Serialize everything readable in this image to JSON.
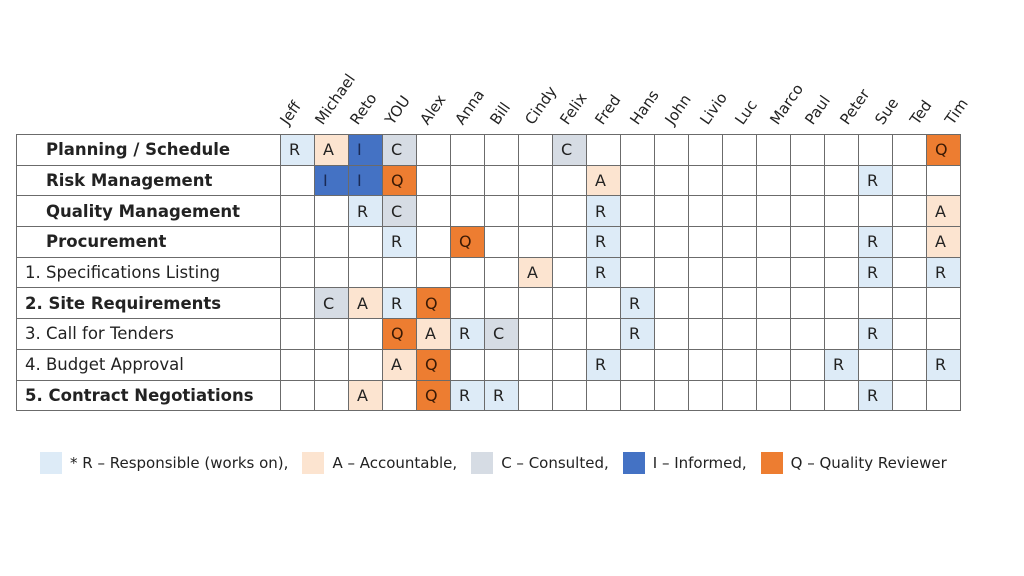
{
  "roles_colors": {
    "R": "#ddebf7",
    "A": "#fce4d0",
    "C": "#d6dce4",
    "I": "#4472c4",
    "Q": "#ed7d31"
  },
  "people": [
    "Jeff",
    "Michael",
    "Reto",
    "YOU",
    "Alex",
    "Anna",
    "Bill",
    "Cindy",
    "Felix",
    "Fred",
    "Hans",
    "John",
    "Livio",
    "Luc",
    "Marco",
    "Paul",
    "Peter",
    "Sue",
    "Ted",
    "Tim"
  ],
  "tasks": [
    {
      "label": "Planning / Schedule",
      "style": "bold",
      "cells": [
        "R",
        "A",
        "I",
        "C",
        "",
        "",
        "",
        "",
        "C",
        "",
        "",
        "",
        "",
        "",
        "",
        "",
        "",
        "",
        "",
        "Q"
      ]
    },
    {
      "label": "Risk Management",
      "style": "bold",
      "cells": [
        "",
        "I",
        "I",
        "Q",
        "",
        "",
        "",
        "",
        "",
        "A",
        "",
        "",
        "",
        "",
        "",
        "",
        "",
        "R",
        "",
        ""
      ]
    },
    {
      "label": "Quality Management",
      "style": "bold",
      "cells": [
        "",
        "",
        "R",
        "C",
        "",
        "",
        "",
        "",
        "",
        "R",
        "",
        "",
        "",
        "",
        "",
        "",
        "",
        "",
        "",
        "A"
      ]
    },
    {
      "label": "Procurement",
      "style": "bold",
      "cells": [
        "",
        "",
        "",
        "R",
        "",
        "Q",
        "",
        "",
        "",
        "R",
        "",
        "",
        "",
        "",
        "",
        "",
        "",
        "R",
        "",
        "A"
      ]
    },
    {
      "label": "1. Specifications Listing",
      "style": "normal",
      "cells": [
        "",
        "",
        "",
        "",
        "",
        "",
        "",
        "A",
        "",
        "R",
        "",
        "",
        "",
        "",
        "",
        "",
        "",
        "R",
        "",
        "R"
      ]
    },
    {
      "label": "2. Site Requirements",
      "style": "num-bold",
      "cells": [
        "",
        "C",
        "A",
        "R",
        "Q",
        "",
        "",
        "",
        "",
        "",
        "R",
        "",
        "",
        "",
        "",
        "",
        "",
        "",
        "",
        ""
      ]
    },
    {
      "label": "3. Call for Tenders",
      "style": "normal",
      "cells": [
        "",
        "",
        "",
        "Q",
        "A",
        "R",
        "C",
        "",
        "",
        "",
        "R",
        "",
        "",
        "",
        "",
        "",
        "",
        "R",
        "",
        ""
      ]
    },
    {
      "label": "4. Budget Approval",
      "style": "normal",
      "cells": [
        "",
        "",
        "",
        "A",
        "Q",
        "",
        "",
        "",
        "",
        "R",
        "",
        "",
        "",
        "",
        "",
        "",
        "R",
        "",
        "",
        "R"
      ]
    },
    {
      "label": "5. Contract Negotiations",
      "style": "num-bold",
      "cells": [
        "",
        "",
        "A",
        "",
        "Q",
        "R",
        "R",
        "",
        "",
        "",
        "",
        "",
        "",
        "",
        "",
        "",
        "",
        "R",
        "",
        ""
      ]
    }
  ],
  "legend": [
    {
      "role": "R",
      "text": "* R – Responsible (works on),"
    },
    {
      "role": "A",
      "text": "A – Accountable,"
    },
    {
      "role": "C",
      "text": "C – Consulted,"
    },
    {
      "role": "I",
      "text": "I – Informed,"
    },
    {
      "role": "Q",
      "text": "Q – Quality Reviewer"
    }
  ]
}
